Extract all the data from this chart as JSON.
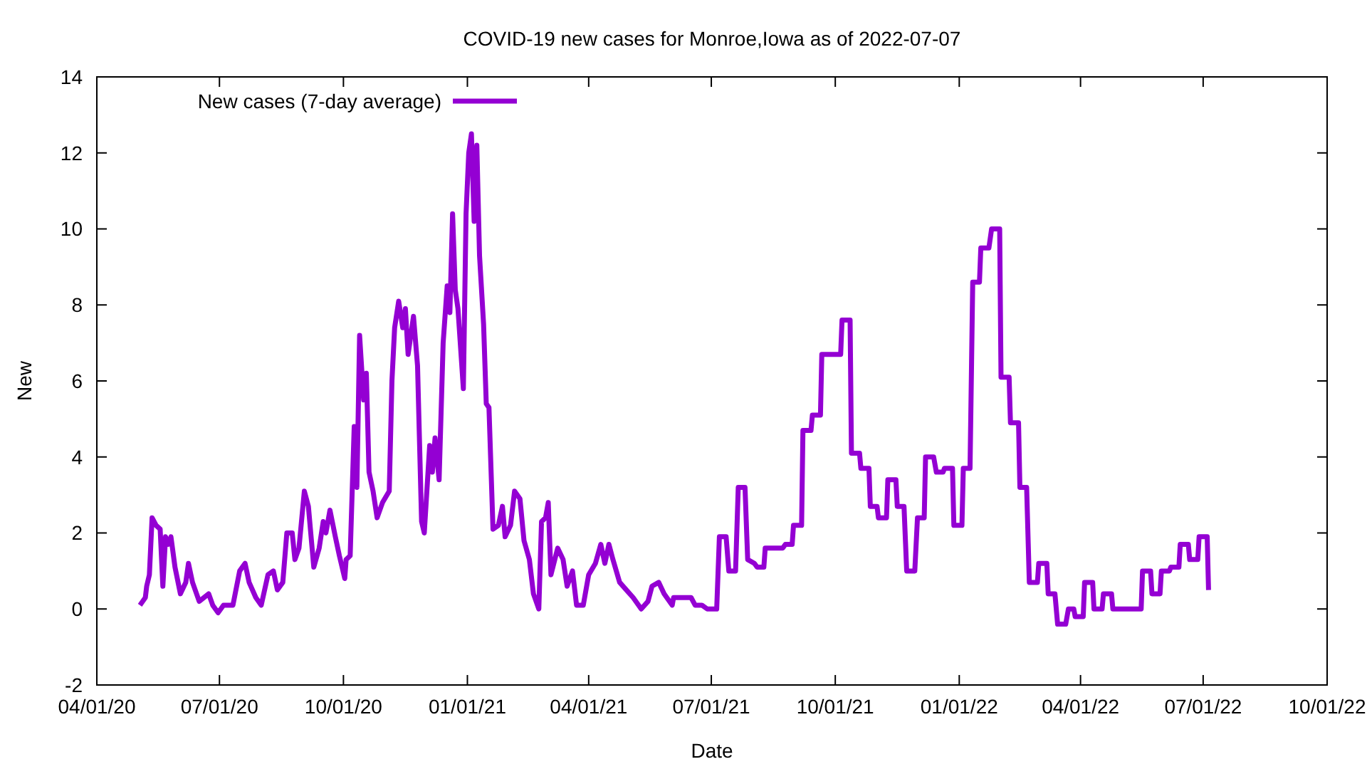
{
  "chart_data": {
    "type": "line",
    "title": "COVID-19 new cases for Monroe,Iowa as of 2022-07-07",
    "xlabel": "Date",
    "ylabel": "New",
    "legend": "top left",
    "xlim": [
      "2020-04-01",
      "2022-10-01"
    ],
    "xticks": [
      {
        "value": "2020-04-01",
        "label": "04/01/20"
      },
      {
        "value": "2020-07-01",
        "label": "07/01/20"
      },
      {
        "value": "2020-10-01",
        "label": "10/01/20"
      },
      {
        "value": "2021-01-01",
        "label": "01/01/21"
      },
      {
        "value": "2021-04-01",
        "label": "04/01/21"
      },
      {
        "value": "2021-07-01",
        "label": "07/01/21"
      },
      {
        "value": "2021-10-01",
        "label": "10/01/21"
      },
      {
        "value": "2022-01-01",
        "label": "01/01/22"
      },
      {
        "value": "2022-04-01",
        "label": "04/01/22"
      },
      {
        "value": "2022-07-01",
        "label": "07/01/22"
      },
      {
        "value": "2022-10-01",
        "label": "10/01/22"
      }
    ],
    "ylim": [
      -2,
      14
    ],
    "yticks": [
      -2,
      0,
      2,
      4,
      6,
      8,
      10,
      12,
      14
    ],
    "x": [
      "2020-05-03",
      "2020-05-07",
      "2020-05-08",
      "2020-05-10",
      "2020-05-12",
      "2020-05-15",
      "2020-05-18",
      "2020-05-20",
      "2020-05-22",
      "2020-05-24",
      "2020-05-26",
      "2020-05-29",
      "2020-06-02",
      "2020-06-06",
      "2020-06-08",
      "2020-06-11",
      "2020-06-16",
      "2020-06-23",
      "2020-06-26",
      "2020-06-30",
      "2020-07-04",
      "2020-07-11",
      "2020-07-16",
      "2020-07-20",
      "2020-07-23",
      "2020-07-28",
      "2020-08-01",
      "2020-08-06",
      "2020-08-10",
      "2020-08-13",
      "2020-08-17",
      "2020-08-20",
      "2020-08-24",
      "2020-08-26",
      "2020-08-29",
      "2020-09-02",
      "2020-09-05",
      "2020-09-09",
      "2020-09-13",
      "2020-09-16",
      "2020-09-18",
      "2020-09-21",
      "2020-09-25",
      "2020-09-28",
      "2020-10-02",
      "2020-10-03",
      "2020-10-06",
      "2020-10-09",
      "2020-10-11",
      "2020-10-13",
      "2020-10-16",
      "2020-10-18",
      "2020-10-20",
      "2020-10-23",
      "2020-10-26",
      "2020-10-30",
      "2020-11-04",
      "2020-11-06",
      "2020-11-08",
      "2020-11-11",
      "2020-11-14",
      "2020-11-16",
      "2020-11-18",
      "2020-11-22",
      "2020-11-25",
      "2020-11-28",
      "2020-11-30",
      "2020-12-04",
      "2020-12-06",
      "2020-12-08",
      "2020-12-11",
      "2020-12-14",
      "2020-12-17",
      "2020-12-19",
      "2020-12-21",
      "2020-12-23",
      "2020-12-25",
      "2020-12-29",
      "2020-12-31",
      "2021-01-02",
      "2021-01-04",
      "2021-01-06",
      "2021-01-08",
      "2021-01-10",
      "2021-01-13",
      "2021-01-15",
      "2021-01-17",
      "2021-01-20",
      "2021-01-24",
      "2021-01-27",
      "2021-01-29",
      "2021-02-02",
      "2021-02-05",
      "2021-02-09",
      "2021-02-12",
      "2021-02-16",
      "2021-02-19",
      "2021-02-23",
      "2021-02-25",
      "2021-02-28",
      "2021-03-02",
      "2021-03-04",
      "2021-03-09",
      "2021-03-13",
      "2021-03-16",
      "2021-03-20",
      "2021-03-23",
      "2021-03-28",
      "2021-04-01",
      "2021-04-06",
      "2021-04-10",
      "2021-04-13",
      "2021-04-16",
      "2021-04-19",
      "2021-04-24",
      "2021-04-29",
      "2021-05-04",
      "2021-05-10",
      "2021-05-15",
      "2021-05-18",
      "2021-05-23",
      "2021-05-27",
      "2021-06-02",
      "2021-06-03",
      "2021-06-16",
      "2021-06-19",
      "2021-06-24",
      "2021-06-28",
      "2021-07-05",
      "2021-07-07",
      "2021-07-12",
      "2021-07-14",
      "2021-07-19",
      "2021-07-21",
      "2021-07-26",
      "2021-07-28",
      "2021-08-02",
      "2021-08-04",
      "2021-08-09",
      "2021-08-10",
      "2021-08-23",
      "2021-08-25",
      "2021-08-30",
      "2021-08-31",
      "2021-09-06",
      "2021-09-07",
      "2021-09-13",
      "2021-09-14",
      "2021-09-20",
      "2021-09-21",
      "2021-10-05",
      "2021-10-06",
      "2021-10-12",
      "2021-10-13",
      "2021-10-19",
      "2021-10-20",
      "2021-10-26",
      "2021-10-27",
      "2021-11-01",
      "2021-11-02",
      "2021-11-08",
      "2021-11-09",
      "2021-11-15",
      "2021-11-16",
      "2021-11-21",
      "2021-11-23",
      "2021-11-29",
      "2021-12-01",
      "2021-12-06",
      "2021-12-07",
      "2021-12-13",
      "2021-12-15",
      "2021-12-20",
      "2021-12-21",
      "2021-12-27",
      "2021-12-28",
      "2022-01-03",
      "2022-01-04",
      "2022-01-09",
      "2022-01-11",
      "2022-01-16",
      "2022-01-17",
      "2022-01-23",
      "2022-01-25",
      "2022-01-31",
      "2022-02-01",
      "2022-02-07",
      "2022-02-08",
      "2022-02-14",
      "2022-02-15",
      "2022-02-20",
      "2022-02-22",
      "2022-02-28",
      "2022-03-01",
      "2022-03-07",
      "2022-03-08",
      "2022-03-13",
      "2022-03-15",
      "2022-03-21",
      "2022-03-23",
      "2022-03-27",
      "2022-03-28",
      "2022-04-03",
      "2022-04-04",
      "2022-04-10",
      "2022-04-11",
      "2022-04-17",
      "2022-04-18",
      "2022-04-24",
      "2022-04-25",
      "2022-05-16",
      "2022-05-17",
      "2022-05-23",
      "2022-05-24",
      "2022-05-30",
      "2022-05-31",
      "2022-06-06",
      "2022-06-07",
      "2022-06-13",
      "2022-06-14",
      "2022-06-20",
      "2022-06-21",
      "2022-06-27",
      "2022-06-28",
      "2022-07-04",
      "2022-07-05"
    ],
    "series": [
      {
        "name": "New cases (7-day average)",
        "color": "#9400d3",
        "values": [
          0.1,
          0.3,
          0.6,
          0.9,
          2.4,
          2.2,
          2.1,
          0.6,
          1.9,
          1.7,
          1.9,
          1.1,
          0.4,
          0.7,
          1.2,
          0.7,
          0.2,
          0.4,
          0.1,
          -0.1,
          0.1,
          0.1,
          1.0,
          1.2,
          0.7,
          0.3,
          0.1,
          0.9,
          1.0,
          0.5,
          0.7,
          2.0,
          2.0,
          1.3,
          1.6,
          3.1,
          2.7,
          1.1,
          1.6,
          2.3,
          2.0,
          2.6,
          1.9,
          1.4,
          0.8,
          1.3,
          1.4,
          4.8,
          3.2,
          7.2,
          5.5,
          6.2,
          3.6,
          3.1,
          2.4,
          2.8,
          3.1,
          6.0,
          7.4,
          8.1,
          7.4,
          7.9,
          6.7,
          7.7,
          6.4,
          2.3,
          2.0,
          4.3,
          3.6,
          4.5,
          3.4,
          7.0,
          8.5,
          7.8,
          10.4,
          8.4,
          7.9,
          5.8,
          10.4,
          12.0,
          12.5,
          10.2,
          12.2,
          9.3,
          7.5,
          5.4,
          5.3,
          2.1,
          2.2,
          2.7,
          1.9,
          2.2,
          3.1,
          2.9,
          1.8,
          1.3,
          0.4,
          0.0,
          2.3,
          2.4,
          2.8,
          0.9,
          1.6,
          1.3,
          0.6,
          1.0,
          0.1,
          0.1,
          0.9,
          1.2,
          1.7,
          1.2,
          1.7,
          1.3,
          0.7,
          0.5,
          0.3,
          0.0,
          0.2,
          0.6,
          0.7,
          0.4,
          0.1,
          0.3,
          0.3,
          0.1,
          0.1,
          0.0,
          0.0,
          1.9,
          1.9,
          1.0,
          1.0,
          3.2,
          3.2,
          1.3,
          1.2,
          1.1,
          1.1,
          1.6,
          1.6,
          1.7,
          1.7,
          2.2,
          2.2,
          4.7,
          4.7,
          5.1,
          5.1,
          6.7,
          6.7,
          7.6,
          7.6,
          4.1,
          4.1,
          3.7,
          3.7,
          2.7,
          2.7,
          2.4,
          2.4,
          3.4,
          3.4,
          2.7,
          2.7,
          1.0,
          1.0,
          2.4,
          2.4,
          4.0,
          4.0,
          3.6,
          3.6,
          3.7,
          3.7,
          2.2,
          2.2,
          3.7,
          3.7,
          8.6,
          8.6,
          9.5,
          9.5,
          10.0,
          10.0,
          6.1,
          6.1,
          4.9,
          4.9,
          3.2,
          3.2,
          0.7,
          0.7,
          1.2,
          1.2,
          0.4,
          0.4,
          -0.4,
          -0.4,
          0.0,
          0.0,
          -0.2,
          -0.2,
          0.7,
          0.7,
          0.0,
          0.0,
          0.4,
          0.4,
          0.0,
          0.0,
          1.0,
          1.0,
          0.4,
          0.4,
          1.0,
          1.0,
          1.1,
          1.1,
          1.7,
          1.7,
          1.3,
          1.3,
          1.9,
          1.9,
          0.5
        ]
      }
    ]
  }
}
